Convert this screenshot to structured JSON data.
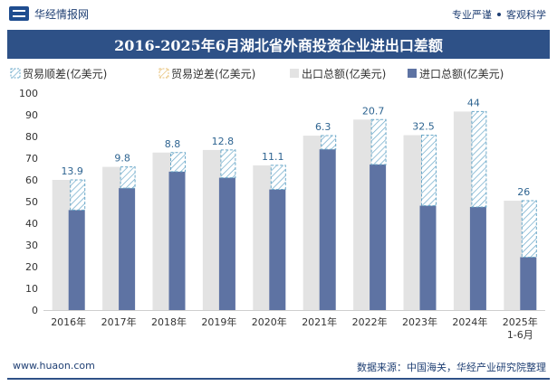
{
  "header": {
    "brand": "华经情报网",
    "tagline_left": "专业严谨",
    "tagline_right": "客观科学"
  },
  "footer": {
    "url": "www.huaon.com",
    "source": "数据来源：中国海关，华经产业研究院整理"
  },
  "chart_data": {
    "type": "bar",
    "title": "2016-2025年6月湖北省外商投资企业进出口差额",
    "categories": [
      "2016年",
      "2017年",
      "2018年",
      "2019年",
      "2020年",
      "2021年",
      "2022年",
      "2023年",
      "2024年",
      "2025年\n1-6月"
    ],
    "series": [
      {
        "name": "贸易顺差(亿美元)",
        "values": [
          13.9,
          9.8,
          8.8,
          12.8,
          11.1,
          6.3,
          20.7,
          32.5,
          44,
          26
        ]
      },
      {
        "name": "贸易逆差(亿美元)",
        "values": [
          0,
          0,
          0,
          0,
          0,
          0,
          0,
          0,
          0,
          0
        ]
      },
      {
        "name": "出口总额(亿美元)",
        "values": [
          60,
          66,
          72.6,
          73.8,
          66.7,
          80.4,
          87.8,
          80.6,
          91.5,
          50.4
        ]
      },
      {
        "name": "进口总额(亿美元)",
        "values": [
          46.1,
          56.2,
          63.8,
          61,
          55.6,
          74.1,
          67.1,
          48.1,
          47.5,
          24.4
        ]
      }
    ],
    "data_labels": [
      "13.9",
      "9.8",
      "8.8",
      "12.8",
      "11.1",
      "6.3",
      "20.7",
      "32.5",
      "44",
      "26"
    ],
    "ylim": [
      0,
      100
    ],
    "yticks": [
      0,
      10,
      20,
      30,
      40,
      50,
      60,
      70,
      80,
      90,
      100
    ],
    "xlabel": "",
    "ylabel": "",
    "grid": false,
    "legend_position": "top-left",
    "colors": {
      "surplus": "#6aa8c9",
      "deficit": "#e8c27a",
      "export": "#e3e3e3",
      "import": "#5e73a3",
      "label": "#2e6491"
    }
  }
}
